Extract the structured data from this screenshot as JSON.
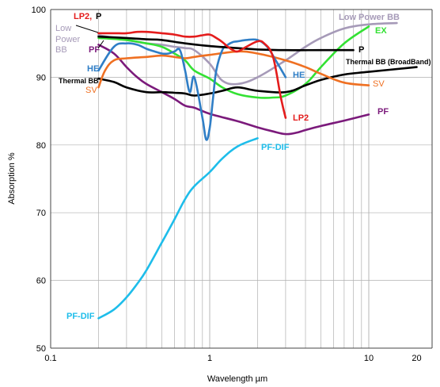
{
  "chart_data": {
    "type": "line",
    "xlabel": "Wavelength  µm",
    "ylabel": "Absorption  %",
    "x_scale": "log",
    "xlim": [
      0.1,
      25
    ],
    "ylim": [
      50,
      100
    ],
    "x_ticks": [
      0.1,
      1,
      10,
      20
    ],
    "x_tick_labels": [
      "0.1",
      "1",
      "10",
      "20"
    ],
    "y_ticks": [
      50,
      60,
      70,
      80,
      90,
      100
    ],
    "y_tick_labels": [
      "50",
      "60",
      "70",
      "80",
      "90",
      "100"
    ],
    "grid": "vertical log minor gridlines from 0.2 to 10 µm; horizontal gridlines at each y tick",
    "series": [
      {
        "name": "PF-DIF",
        "color": "#1ebdea",
        "label_color": "#1ebdea",
        "x": [
          0.2,
          0.25,
          0.3,
          0.35,
          0.4,
          0.5,
          0.6,
          0.7,
          0.8,
          1.0,
          1.2,
          1.5,
          2.0
        ],
        "y": [
          54.4,
          55.7,
          57.5,
          59.5,
          61.5,
          65.6,
          69.0,
          72.0,
          73.9,
          76.0,
          78.0,
          79.8,
          81.0
        ]
      },
      {
        "name": "PF",
        "color": "#7b1a7b",
        "label_color": "#7b1a7b",
        "x": [
          0.2,
          0.25,
          0.3,
          0.35,
          0.4,
          0.5,
          0.6,
          0.7,
          0.8,
          1.0,
          1.5,
          2.0,
          2.5,
          3.0,
          3.5,
          4.0,
          5.0,
          7.0,
          10.0
        ],
        "y": [
          94.8,
          93.5,
          91.5,
          90.0,
          89.0,
          87.8,
          86.8,
          85.8,
          85.5,
          84.6,
          83.5,
          82.6,
          82.0,
          81.6,
          81.8,
          82.2,
          82.8,
          83.6,
          84.5
        ]
      },
      {
        "name": "Low Power BB",
        "color": "#a69ab8",
        "label_color": "#a69ab8",
        "x": [
          0.2,
          0.3,
          0.4,
          0.5,
          0.6,
          0.7,
          0.8,
          1.0,
          1.2,
          1.5,
          2.0,
          3.0,
          4.0,
          5.0,
          7.0,
          10.0,
          15.0
        ],
        "y": [
          96.2,
          95.5,
          95.0,
          94.8,
          94.5,
          94.3,
          94.0,
          92.0,
          89.5,
          89.0,
          90.0,
          92.5,
          94.5,
          95.8,
          97.2,
          97.8,
          98.0
        ]
      },
      {
        "name": "EX",
        "color": "#33e133",
        "label_color": "#33e133",
        "x": [
          0.2,
          0.3,
          0.4,
          0.5,
          0.6,
          0.7,
          0.8,
          1.0,
          1.2,
          1.5,
          2.0,
          2.5,
          3.0,
          4.0,
          5.0,
          7.0,
          10.0
        ],
        "y": [
          95.8,
          95.5,
          95.0,
          94.5,
          93.5,
          92.5,
          91.0,
          89.8,
          88.5,
          87.5,
          87.0,
          87.0,
          87.3,
          89.0,
          91.5,
          95.0,
          97.5
        ]
      },
      {
        "name": "Thermal BB (BroadBand)",
        "color": "#000000",
        "label_color": "#000000",
        "x": [
          0.2,
          0.25,
          0.3,
          0.4,
          0.5,
          0.6,
          0.7,
          0.8,
          1.0,
          1.2,
          1.5,
          2.0,
          3.0,
          4.0,
          5.0,
          7.0,
          10.0,
          20.0
        ],
        "y": [
          89.8,
          89.3,
          88.5,
          87.8,
          87.8,
          87.7,
          87.6,
          87.3,
          87.6,
          88.0,
          88.5,
          88.0,
          87.8,
          88.8,
          89.6,
          90.4,
          90.8,
          91.5
        ]
      },
      {
        "name": "SV",
        "color": "#ef7022",
        "label_color": "#ef7022",
        "x": [
          0.2,
          0.22,
          0.25,
          0.3,
          0.4,
          0.5,
          0.6,
          0.7,
          0.8,
          1.0,
          1.5,
          2.0,
          3.0,
          4.0,
          5.0,
          7.0,
          10.0
        ],
        "y": [
          88.5,
          91.0,
          92.5,
          92.8,
          93.0,
          93.2,
          93.0,
          92.8,
          93.0,
          93.3,
          93.8,
          93.5,
          92.5,
          91.5,
          90.5,
          89.2,
          88.8
        ]
      },
      {
        "name": "HE",
        "color": "#2f7ec6",
        "label_color": "#2f7ec6",
        "x": [
          0.2,
          0.25,
          0.3,
          0.35,
          0.4,
          0.45,
          0.5,
          0.55,
          0.6,
          0.65,
          0.7,
          0.75,
          0.8,
          0.9,
          0.95,
          1.0,
          1.05,
          1.1,
          1.2,
          1.3,
          1.4,
          1.5,
          1.7,
          2.0,
          2.3,
          2.6,
          3.0
        ],
        "y": [
          91.0,
          94.5,
          95.0,
          94.8,
          94.2,
          93.8,
          93.5,
          93.5,
          93.8,
          94.0,
          91.0,
          87.8,
          90.0,
          84.0,
          80.8,
          82.5,
          87.0,
          91.0,
          94.0,
          94.8,
          95.2,
          95.3,
          95.5,
          95.5,
          94.5,
          92.5,
          90.0
        ]
      },
      {
        "name": "P",
        "color": "#000000",
        "label_color": "#000000",
        "x": [
          0.2,
          0.3,
          0.4,
          0.5,
          0.7,
          1.0,
          1.5,
          2.0,
          3.0,
          5.0,
          8.0
        ],
        "y": [
          96.0,
          95.8,
          95.6,
          95.5,
          95.0,
          94.6,
          94.3,
          94.1,
          94.0,
          94.0,
          94.0
        ]
      },
      {
        "name": "LP2",
        "color": "#e41c1c",
        "label_color": "#e41c1c",
        "x": [
          0.2,
          0.25,
          0.3,
          0.35,
          0.4,
          0.5,
          0.6,
          0.7,
          0.8,
          0.9,
          1.0,
          1.1,
          1.2,
          1.3,
          1.4,
          1.5,
          1.7,
          2.0,
          2.2,
          2.5,
          2.8,
          3.0
        ],
        "y": [
          96.5,
          96.5,
          96.5,
          96.7,
          96.7,
          96.5,
          96.3,
          96.0,
          96.0,
          96.2,
          96.3,
          95.8,
          95.2,
          94.5,
          94.0,
          93.8,
          94.5,
          95.3,
          95.0,
          93.0,
          87.0,
          84.0
        ]
      }
    ],
    "annotations": [
      {
        "text": "LP2,",
        "color": "#e41c1c"
      },
      {
        "text": "P",
        "color": "#000000"
      },
      {
        "text": "Low",
        "color": "#a69ab8"
      },
      {
        "text": "Power",
        "color": "#a69ab8"
      },
      {
        "text": "BB",
        "color": "#a69ab8"
      },
      {
        "text": "PF",
        "color": "#7b1a7b"
      },
      {
        "text": "HE",
        "color": "#2f7ec6"
      },
      {
        "text": "Thermal BB",
        "color": "#000000"
      },
      {
        "text": "SV",
        "color": "#ef7022"
      },
      {
        "text": "Low Power BB",
        "color": "#a69ab8"
      },
      {
        "text": "EX",
        "color": "#33e133"
      },
      {
        "text": "P",
        "color": "#000000"
      },
      {
        "text": "Thermal BB (BroadBand)",
        "color": "#000000"
      },
      {
        "text": "HE",
        "color": "#2f7ec6"
      },
      {
        "text": "SV",
        "color": "#ef7022"
      },
      {
        "text": "LP2",
        "color": "#e41c1c"
      },
      {
        "text": "PF",
        "color": "#7b1a7b"
      },
      {
        "text": "PF-DIF",
        "color": "#1ebdea"
      },
      {
        "text": "PF-DIF",
        "color": "#1ebdea"
      }
    ]
  }
}
